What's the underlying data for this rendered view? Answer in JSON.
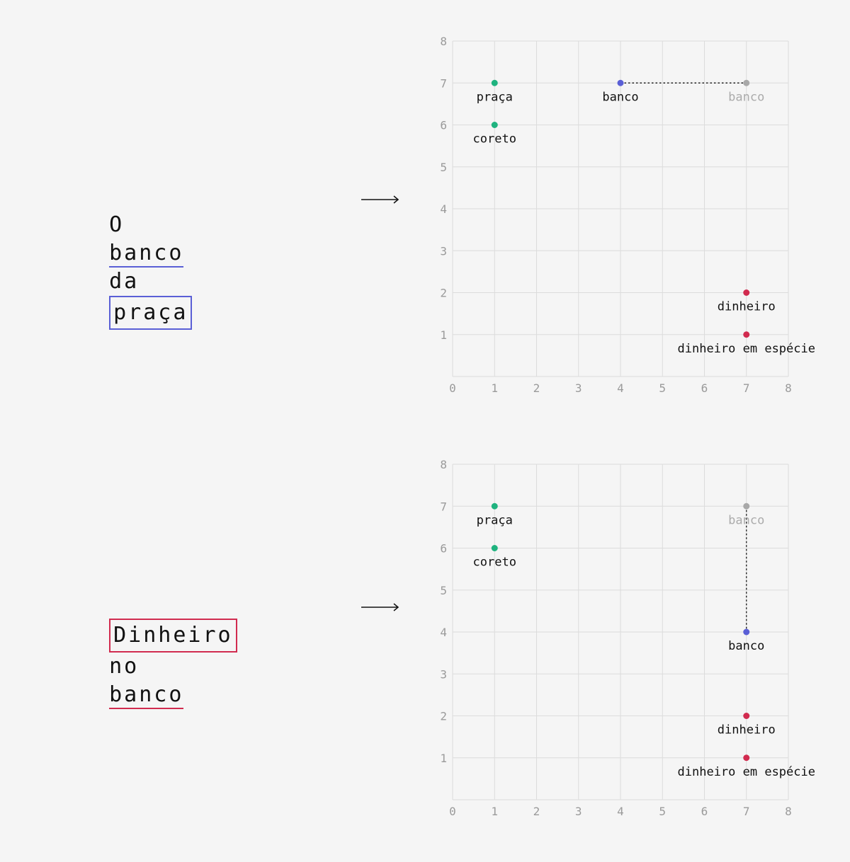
{
  "colors": {
    "green": "#1fb37f",
    "blue": "#5a5fd6",
    "red": "#d12b4f",
    "gray": "#a8a8a8",
    "grid": "#dcdcdc",
    "tick": "#9a9a9a"
  },
  "panels": [
    {
      "sentence": {
        "words": [
          {
            "text": "O",
            "style": "plain"
          },
          {
            "text": "banco",
            "style": "underline-blue"
          },
          {
            "text": "da",
            "style": "plain"
          },
          {
            "text": "praça",
            "style": "box-blue"
          }
        ]
      },
      "arrow_icon": "long-right-arrow-icon",
      "chart_data": {
        "type": "scatter",
        "xlim": [
          0,
          8
        ],
        "ylim": [
          0,
          8
        ],
        "x_ticks": [
          "0",
          "1",
          "2",
          "3",
          "4",
          "5",
          "6",
          "7",
          "8"
        ],
        "y_ticks": [
          "",
          "1",
          "2",
          "3",
          "4",
          "5",
          "6",
          "7",
          "8"
        ],
        "grid": true,
        "points": [
          {
            "label": "praça",
            "x": 1,
            "y": 7,
            "color": "green"
          },
          {
            "label": "coreto",
            "x": 1,
            "y": 6,
            "color": "green"
          },
          {
            "label": "banco",
            "x": 4,
            "y": 7,
            "color": "blue"
          },
          {
            "label": "banco",
            "x": 7,
            "y": 7,
            "color": "gray",
            "ghost": true
          },
          {
            "label": "dinheiro",
            "x": 7,
            "y": 2,
            "color": "red"
          },
          {
            "label": "dinheiro em espécie",
            "x": 7,
            "y": 1,
            "color": "red"
          }
        ],
        "links": [
          {
            "from": 2,
            "to": 3,
            "style": "dotted"
          }
        ]
      }
    },
    {
      "sentence": {
        "words": [
          {
            "text": "Dinheiro",
            "style": "box-red"
          },
          {
            "text": "no",
            "style": "plain"
          },
          {
            "text": "banco",
            "style": "underline-red"
          }
        ]
      },
      "arrow_icon": "long-right-arrow-icon",
      "chart_data": {
        "type": "scatter",
        "xlim": [
          0,
          8
        ],
        "ylim": [
          0,
          8
        ],
        "x_ticks": [
          "0",
          "1",
          "2",
          "3",
          "4",
          "5",
          "6",
          "7",
          "8"
        ],
        "y_ticks": [
          "",
          "1",
          "2",
          "3",
          "4",
          "5",
          "6",
          "7",
          "8"
        ],
        "grid": true,
        "points": [
          {
            "label": "praça",
            "x": 1,
            "y": 7,
            "color": "green"
          },
          {
            "label": "coreto",
            "x": 1,
            "y": 6,
            "color": "green"
          },
          {
            "label": "banco",
            "x": 7,
            "y": 7,
            "color": "gray",
            "ghost": true
          },
          {
            "label": "banco",
            "x": 7,
            "y": 4,
            "color": "blue"
          },
          {
            "label": "dinheiro",
            "x": 7,
            "y": 2,
            "color": "red"
          },
          {
            "label": "dinheiro em espécie",
            "x": 7,
            "y": 1,
            "color": "red"
          }
        ],
        "links": [
          {
            "from": 2,
            "to": 3,
            "style": "dotted"
          }
        ]
      }
    }
  ]
}
